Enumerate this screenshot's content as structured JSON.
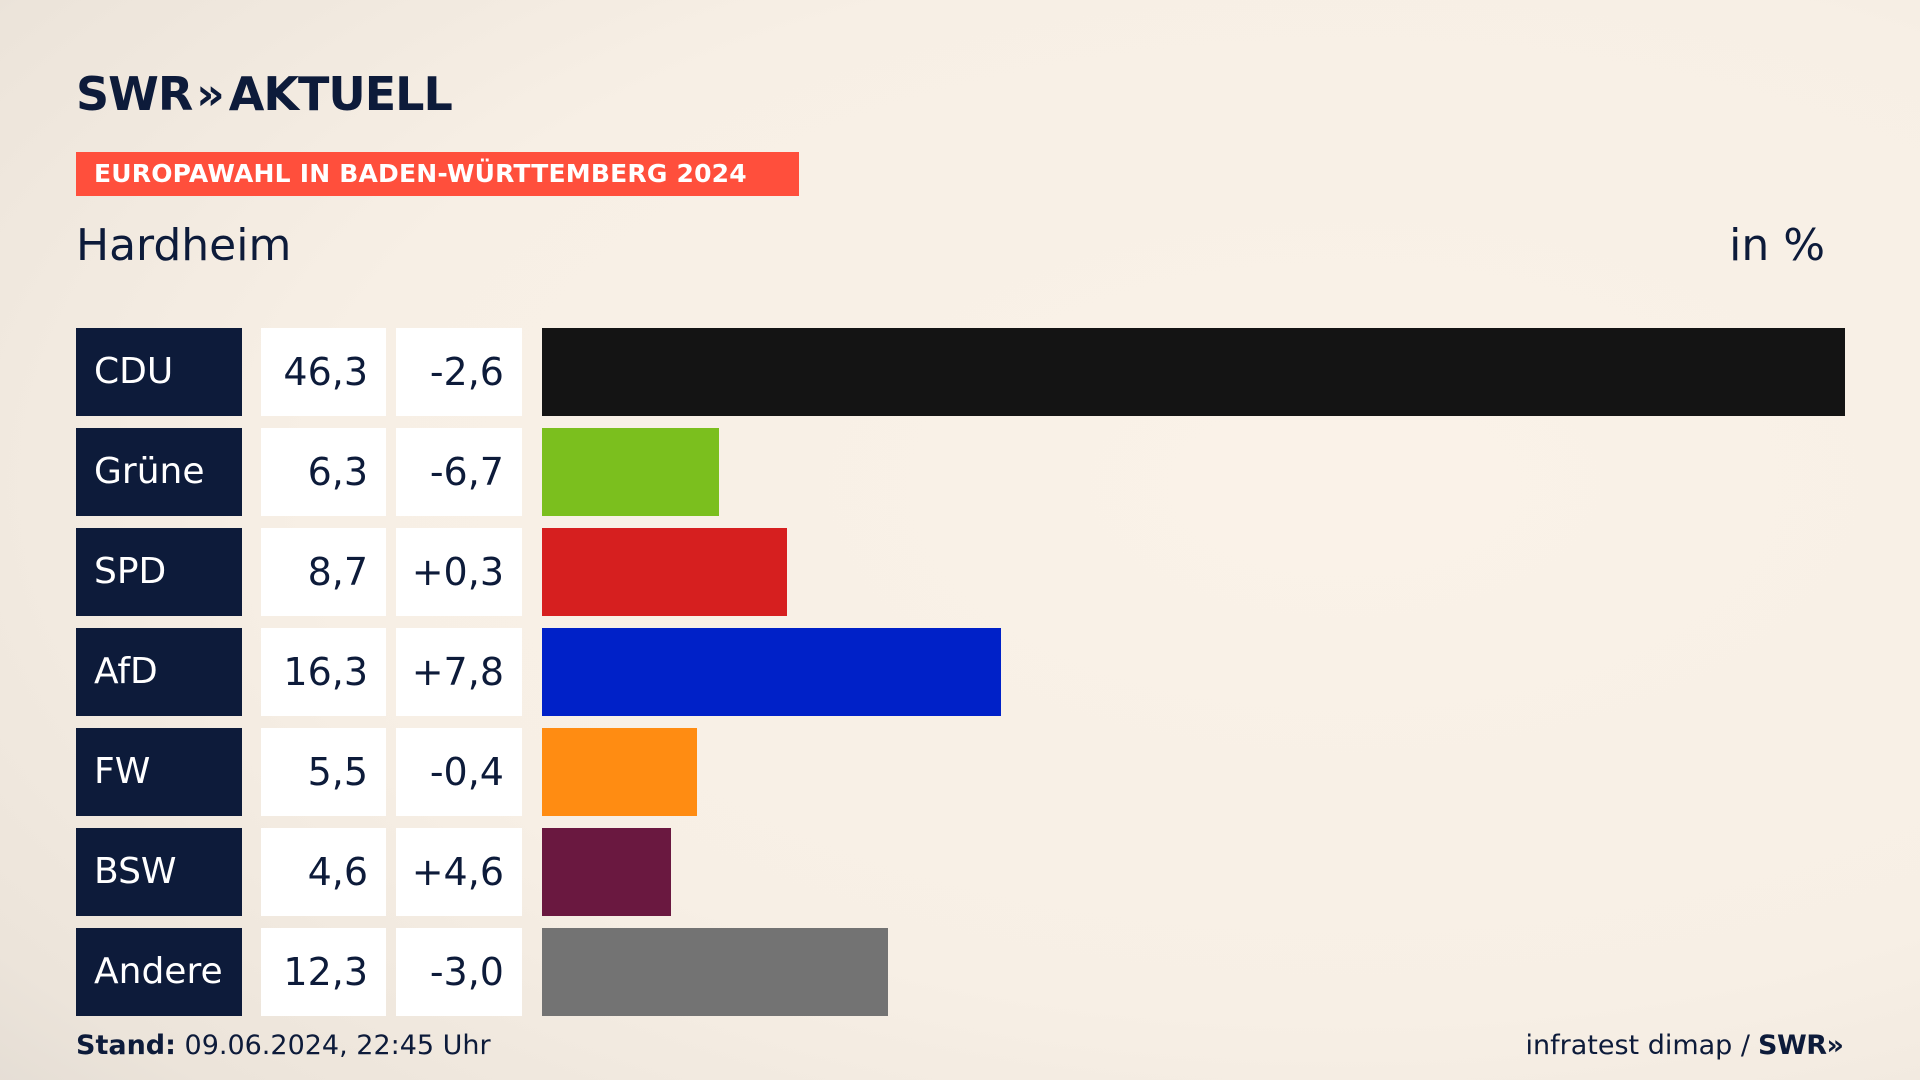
{
  "header": {
    "logo_brand": "SWR",
    "logo_chevrons": "»",
    "logo_product": "AKTUELL",
    "banner": "EUROPAWAHL IN BADEN-WÜRTTEMBERG 2024",
    "region": "Hardheim",
    "unit": "in %"
  },
  "chart_data": {
    "type": "bar",
    "orientation": "horizontal",
    "categories": [
      "CDU",
      "Grüne",
      "SPD",
      "AfD",
      "FW",
      "BSW",
      "Andere"
    ],
    "values_label": [
      "46,3",
      "6,3",
      "8,7",
      "16,3",
      "5,5",
      "4,6",
      "12,3"
    ],
    "diffs_label": [
      "-2,6",
      "-6,7",
      "+0,3",
      "+7,8",
      "-0,4",
      "+4,6",
      "-3,0"
    ],
    "values": [
      46.3,
      6.3,
      8.7,
      16.3,
      5.5,
      4.6,
      12.3
    ],
    "diffs": [
      -2.6,
      -6.7,
      0.3,
      7.8,
      -0.4,
      4.6,
      -3.0
    ],
    "colors": [
      "#141414",
      "#7bbf1e",
      "#d61f1f",
      "#0021c8",
      "#ff8c12",
      "#6a1840",
      "#737373"
    ],
    "xlim": [
      0,
      46.3
    ]
  },
  "footer": {
    "stand_label": "Stand:",
    "stand_value": "09.06.2024, 22:45 Uhr",
    "source": "infratest dimap /",
    "source_brand": "SWR",
    "source_chevrons": "»"
  }
}
